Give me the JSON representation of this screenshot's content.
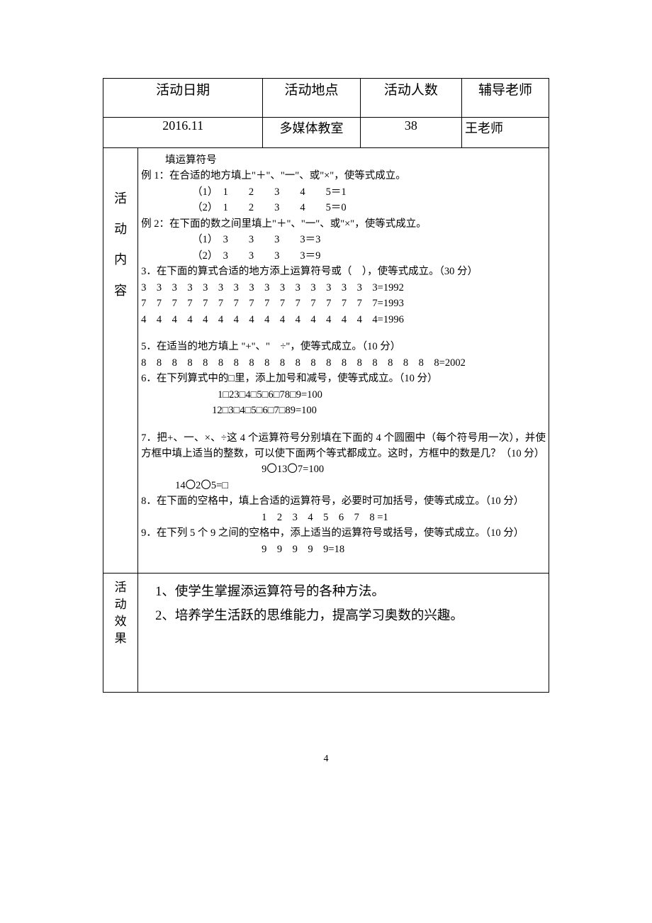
{
  "header": {
    "date_label": "活动日期",
    "place_label": "活动地点",
    "count_label": "活动人数",
    "teacher_label": "辅导老师"
  },
  "values": {
    "date": "2016.11",
    "place": "多媒体教室",
    "count": "38",
    "teacher": "王老师"
  },
  "section_labels": {
    "content_chars": [
      "活",
      "动",
      "内",
      "容"
    ],
    "effect_chars": [
      "活",
      "动",
      "效",
      "果"
    ]
  },
  "content": {
    "title": "填运算符号",
    "ex1_head": "例 1：在合适的地方填上\"＋\"、\"一\"、或\"×\"，使等式成立。",
    "ex1_1": "（1）　1　　2　　3　　4　　5＝1",
    "ex1_2": "（2）　1　　2　　3　　4　　5＝0",
    "ex2_head": "例 2：在下面的数之间里填上\"＋\"、\"一\"、或\"×\"，使等式成立。",
    "ex2_1": "（1）　3　　3　　3　　3＝3",
    "ex2_2": "（2）　3　　3　　3　　3＝9",
    "q3_head": "3．在下面的算式合适的地方添上运算符号或（　），使等式成立。（30 分）",
    "q3_line1": "3　3　3　3　3　3　3　3　3　3　3　3　3　3　3　3=1992",
    "q3_line2": "7　7　7　7　7　7　7　7　7　7　7　7　7　7　7　7=1993",
    "q3_line3": "4　4　4　4　4　4　4　4　4　4　4　4　4　4　4　4=1996",
    "q5_head": "5．在适当的地方填上 \"+\"、\"　÷\"，使等式成立。（10 分）",
    "q5_line": " 8　8　8　8　8　8　8　8　8　8　8　8　8　8　8　8　8　8　8　8=2002",
    "q6_head": "6．在下列算式中的□里，添上加号和减号，使等式成立。（10 分）",
    "q6_line1": "1□23□4□5□6□78□9=100",
    "q6_line2": "12□3□4□5□6□7□89=100",
    "q7_head": "7．把+、一、×、÷这 4 个运算符号分别填在下面的 4 个圆圈中（每个符号用一次），并使方框中填上适当的整数，可以使下面两个等式都成立。这时，方框中的数是几？（10 分）",
    "q7_line1": "9〇13〇7=100",
    "q7_line2": "14〇2〇5=□",
    "q8_head": "8．在下面的空格中，填上合适的运算符号，必要时可加括号，使等式成立。（10 分）",
    "q8_line": "1　2　3　4　5　6　7　8 =1",
    "q9_head": "9．在下列 5 个 9 之间的空格中，添上适当的运算符号或括号，使等式成立。（10 分）",
    "q9_line": "9　9　9　9　9=18"
  },
  "effect": {
    "line1": "1、使学生掌握添运算符号的各种方法。",
    "line2": "2、培养学生活跃的思维能力，提高学习奥数的兴趣。"
  },
  "page_number": "4",
  "colors": {
    "text": "#000000",
    "background": "#ffffff",
    "border": "#000000"
  }
}
